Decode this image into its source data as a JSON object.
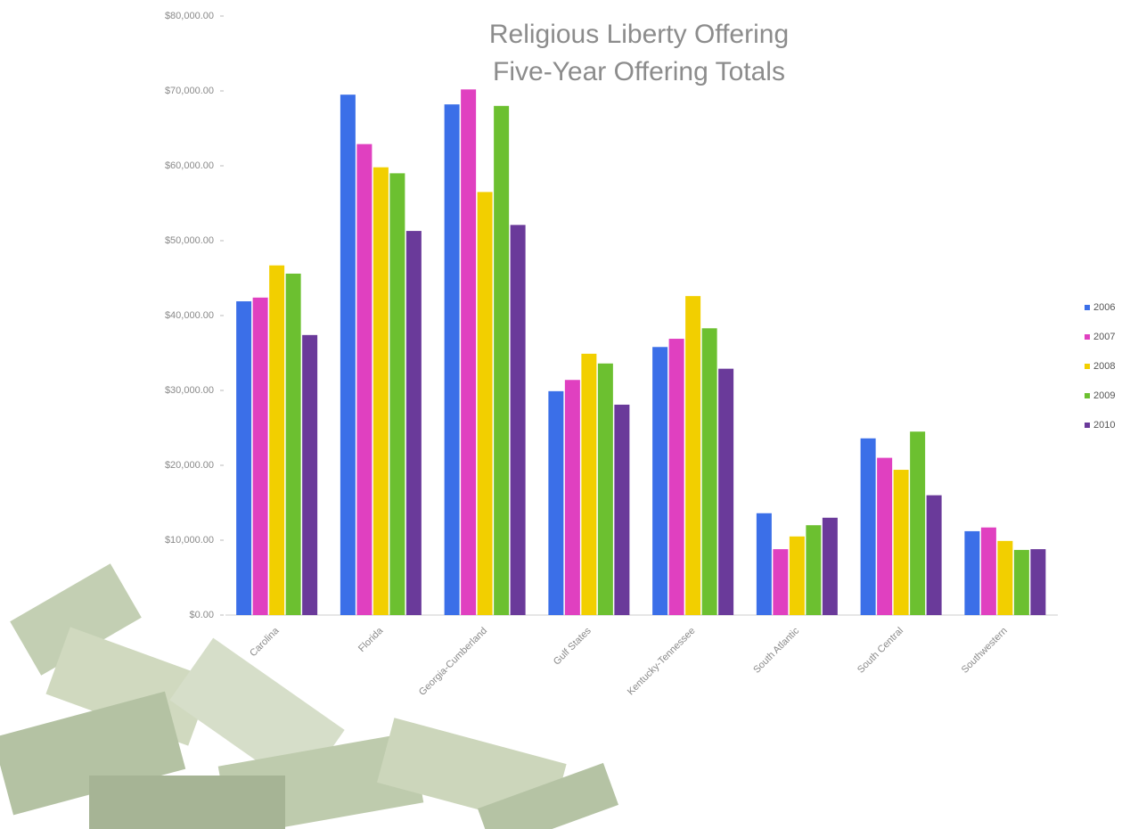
{
  "chart_data": {
    "type": "bar",
    "title": "Religious Liberty Offering",
    "subtitle": "Five-Year Offering Totals",
    "categories": [
      "Carolina",
      "Florida",
      "Georgia-Cumberland",
      "Gulf States",
      "Kentucky-Tennessee",
      "South Atlantic",
      "South Central",
      "Southwestern"
    ],
    "series": [
      {
        "name": "2006",
        "color": "#3b6fe8",
        "values": [
          41900,
          69500,
          68200,
          29900,
          35800,
          13600,
          23600,
          11200
        ]
      },
      {
        "name": "2007",
        "color": "#e040c0",
        "values": [
          42400,
          62900,
          70200,
          31400,
          36900,
          8800,
          21000,
          11700
        ]
      },
      {
        "name": "2008",
        "color": "#f2cf00",
        "values": [
          46700,
          59800,
          56500,
          34900,
          42600,
          10500,
          19400,
          9900
        ]
      },
      {
        "name": "2009",
        "color": "#6cc030",
        "values": [
          45600,
          59000,
          68000,
          33600,
          38300,
          12000,
          24500,
          8700
        ]
      },
      {
        "name": "2010",
        "color": "#6a3a9a",
        "values": [
          37400,
          51300,
          52100,
          28100,
          32900,
          13000,
          16000,
          8800
        ]
      }
    ],
    "ylim": [
      0,
      80000
    ],
    "yticks": [
      {
        "value": 0,
        "label": "$0.00"
      },
      {
        "value": 10000,
        "label": "$10,000.00"
      },
      {
        "value": 20000,
        "label": "$20,000.00"
      },
      {
        "value": 30000,
        "label": "$30,000.00"
      },
      {
        "value": 40000,
        "label": "$40,000.00"
      },
      {
        "value": 50000,
        "label": "$50,000.00"
      },
      {
        "value": 60000,
        "label": "$60,000.00"
      },
      {
        "value": 70000,
        "label": "$70,000.00"
      },
      {
        "value": 80000,
        "label": "$80,000.00"
      }
    ],
    "legend": "right"
  }
}
